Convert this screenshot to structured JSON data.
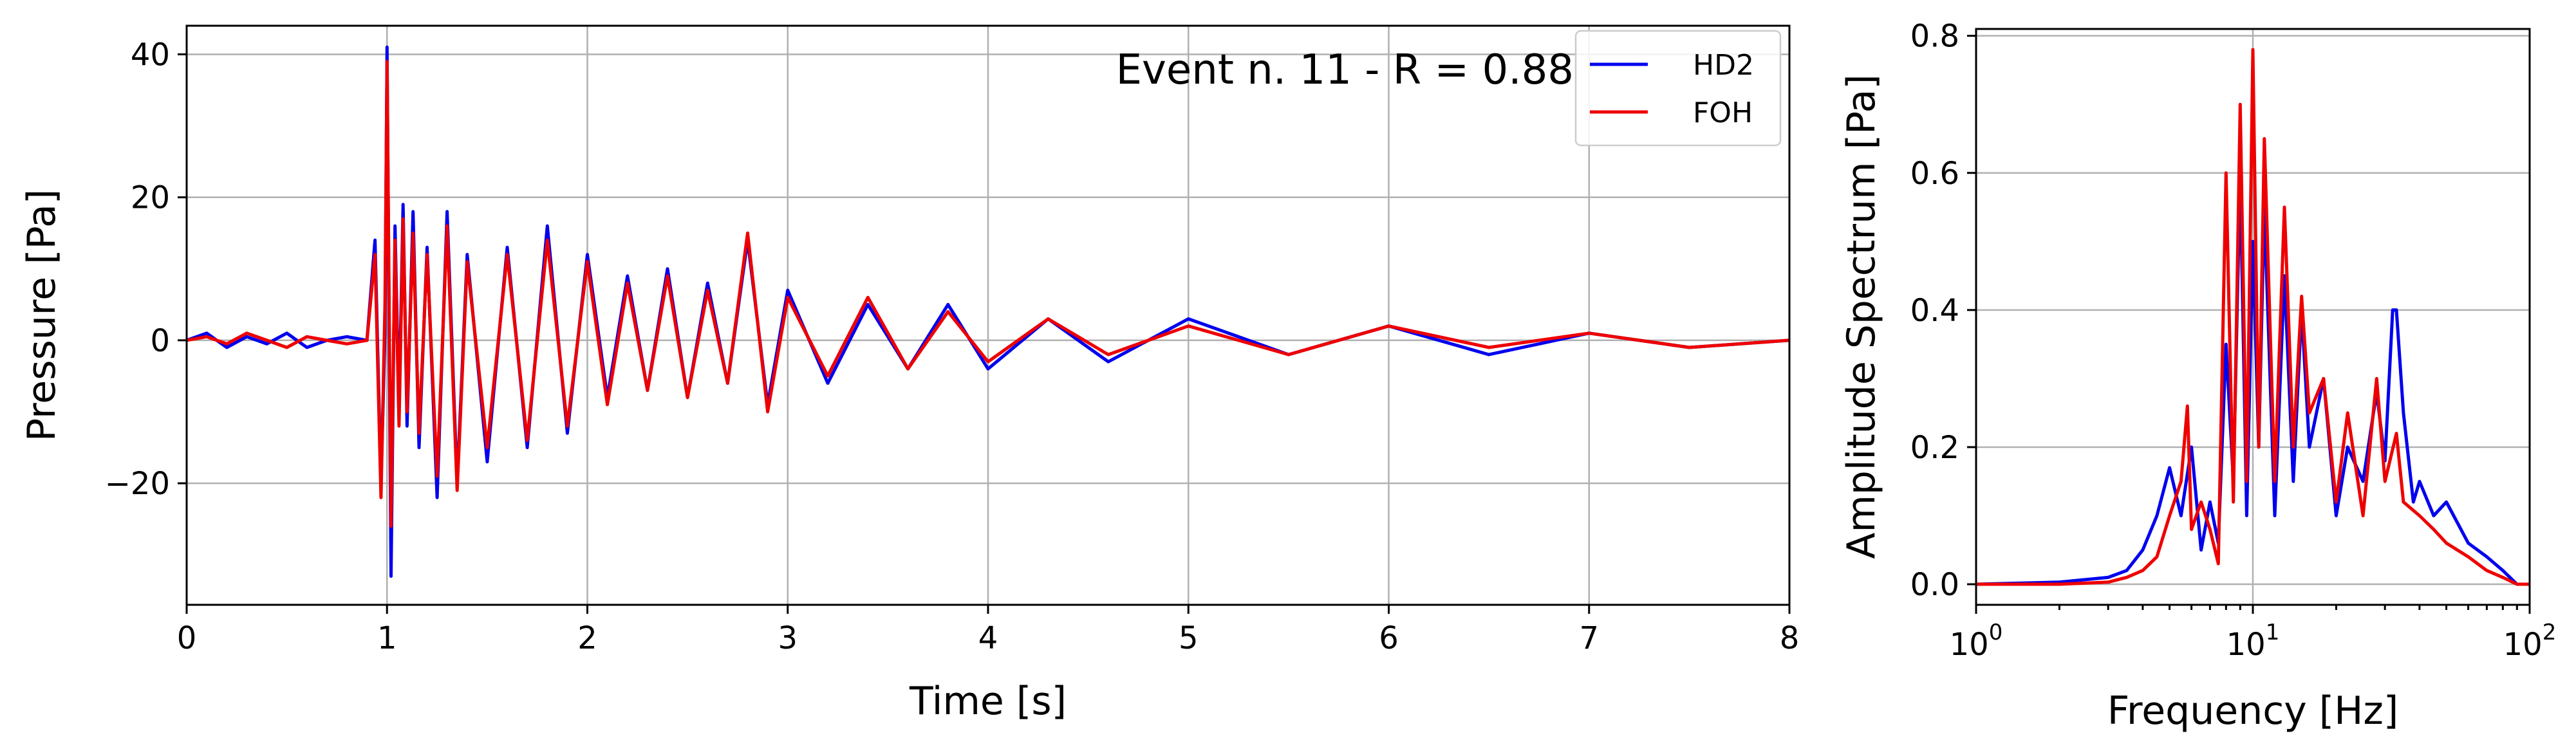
{
  "colors": {
    "HD2": "#0000ee",
    "FOH": "#ee0000"
  },
  "chart_data": [
    {
      "type": "line",
      "xlabel": "Time [s]",
      "ylabel": "Pressure [Pa]",
      "xlim": [
        0,
        8
      ],
      "ylim": [
        -37,
        44
      ],
      "xticks": [
        "0",
        "1",
        "2",
        "3",
        "4",
        "5",
        "6",
        "7",
        "8"
      ],
      "yticks": [
        "40",
        "20",
        "0",
        "−20"
      ],
      "ytick_values": [
        40,
        20,
        0,
        -20
      ],
      "grid": true,
      "annotation": "Event n. 11 - R = 0.88",
      "legend": {
        "placement": "top-right",
        "entries": [
          "HD2",
          "FOH"
        ]
      },
      "series": [
        {
          "name": "HD2",
          "color": "#0000ee",
          "x": [
            0.0,
            0.1,
            0.2,
            0.3,
            0.4,
            0.5,
            0.6,
            0.7,
            0.8,
            0.9,
            0.94,
            0.97,
            0.99,
            1.0,
            1.02,
            1.04,
            1.06,
            1.08,
            1.1,
            1.13,
            1.16,
            1.2,
            1.25,
            1.3,
            1.35,
            1.4,
            1.5,
            1.6,
            1.7,
            1.8,
            1.9,
            2.0,
            2.1,
            2.2,
            2.3,
            2.4,
            2.5,
            2.6,
            2.7,
            2.8,
            2.9,
            3.0,
            3.2,
            3.4,
            3.6,
            3.8,
            4.0,
            4.3,
            4.6,
            5.0,
            5.5,
            6.0,
            6.5,
            7.0,
            7.5,
            8.0
          ],
          "y": [
            0,
            1,
            -1,
            0.5,
            -0.5,
            1,
            -1,
            0,
            0.5,
            0,
            14,
            -20,
            1,
            41,
            -33,
            16,
            -10,
            19,
            -12,
            18,
            -15,
            13,
            -22,
            18,
            -20,
            12,
            -17,
            13,
            -15,
            16,
            -13,
            12,
            -8,
            9,
            -7,
            10,
            -8,
            8,
            -6,
            14,
            -9,
            7,
            -6,
            5,
            -4,
            5,
            -4,
            3,
            -3,
            3,
            -2,
            2,
            -2,
            1,
            -1,
            0
          ]
        },
        {
          "name": "FOH",
          "color": "#ee0000",
          "x": [
            0.0,
            0.1,
            0.2,
            0.3,
            0.4,
            0.5,
            0.6,
            0.7,
            0.8,
            0.9,
            0.94,
            0.97,
            0.99,
            1.0,
            1.02,
            1.04,
            1.06,
            1.08,
            1.1,
            1.13,
            1.16,
            1.2,
            1.25,
            1.3,
            1.35,
            1.4,
            1.5,
            1.6,
            1.7,
            1.8,
            1.9,
            2.0,
            2.1,
            2.2,
            2.3,
            2.4,
            2.5,
            2.6,
            2.7,
            2.8,
            2.9,
            3.0,
            3.2,
            3.4,
            3.6,
            3.8,
            4.0,
            4.3,
            4.6,
            5.0,
            5.5,
            6.0,
            6.5,
            7.0,
            7.5,
            8.0
          ],
          "y": [
            0,
            0.5,
            -0.5,
            1,
            0,
            -1,
            0.5,
            0,
            -0.5,
            0,
            12,
            -22,
            5,
            39,
            -26,
            14,
            -12,
            17,
            -10,
            15,
            -13,
            12,
            -19,
            16,
            -21,
            11,
            -15,
            12,
            -14,
            14,
            -12,
            11,
            -9,
            8,
            -7,
            9,
            -8,
            7,
            -6,
            15,
            -10,
            6,
            -5,
            6,
            -4,
            4,
            -3,
            3,
            -2,
            2,
            -2,
            2,
            -1,
            1,
            -1,
            0
          ]
        }
      ]
    },
    {
      "type": "line",
      "xlabel": "Frequency [Hz]",
      "ylabel": "Amplitude Spectrum [Pa]",
      "xscale": "log",
      "xlim": [
        1,
        100
      ],
      "ylim": [
        -0.03,
        0.81
      ],
      "xtick_values": [
        1,
        10,
        100
      ],
      "xticks_base": [
        "10",
        "10",
        "10"
      ],
      "xticks_exp": [
        "0",
        "1",
        "2"
      ],
      "yticks": [
        "0.0",
        "0.2",
        "0.4",
        "0.6",
        "0.8"
      ],
      "ytick_values": [
        0.0,
        0.2,
        0.4,
        0.6,
        0.8
      ],
      "grid": true,
      "series": [
        {
          "name": "HD2",
          "color": "#0000ee",
          "x": [
            1.0,
            2.0,
            3.0,
            3.5,
            4.0,
            4.5,
            5.0,
            5.5,
            6.0,
            6.5,
            7.0,
            7.5,
            8.0,
            8.5,
            9.0,
            9.5,
            10.0,
            10.5,
            11.0,
            12.0,
            13.0,
            14.0,
            15.0,
            16.0,
            18.0,
            20.0,
            22.0,
            25.0,
            28.0,
            30.0,
            32.0,
            33.0,
            35.0,
            38.0,
            40.0,
            45.0,
            50.0,
            60.0,
            70.0,
            80.0,
            90.0,
            100.0
          ],
          "y": [
            0.0,
            0.003,
            0.01,
            0.02,
            0.05,
            0.1,
            0.17,
            0.1,
            0.2,
            0.05,
            0.12,
            0.06,
            0.35,
            0.15,
            0.6,
            0.1,
            0.5,
            0.2,
            0.55,
            0.1,
            0.45,
            0.15,
            0.4,
            0.2,
            0.3,
            0.1,
            0.2,
            0.15,
            0.28,
            0.18,
            0.4,
            0.4,
            0.25,
            0.12,
            0.15,
            0.1,
            0.12,
            0.06,
            0.04,
            0.02,
            0.0,
            0.0
          ]
        },
        {
          "name": "FOH",
          "color": "#ee0000",
          "x": [
            1.0,
            2.0,
            3.0,
            3.5,
            4.0,
            4.5,
            5.0,
            5.5,
            5.8,
            6.0,
            6.5,
            7.0,
            7.5,
            8.0,
            8.5,
            9.0,
            9.5,
            10.0,
            10.5,
            11.0,
            12.0,
            13.0,
            14.0,
            15.0,
            16.0,
            18.0,
            20.0,
            22.0,
            25.0,
            28.0,
            30.0,
            33.0,
            35.0,
            40.0,
            45.0,
            50.0,
            60.0,
            70.0,
            80.0,
            90.0,
            100.0
          ],
          "y": [
            0.0,
            0.0,
            0.003,
            0.01,
            0.02,
            0.04,
            0.1,
            0.15,
            0.26,
            0.08,
            0.12,
            0.08,
            0.03,
            0.6,
            0.12,
            0.7,
            0.15,
            0.78,
            0.2,
            0.65,
            0.15,
            0.55,
            0.2,
            0.42,
            0.25,
            0.3,
            0.12,
            0.25,
            0.1,
            0.3,
            0.15,
            0.22,
            0.12,
            0.1,
            0.08,
            0.06,
            0.04,
            0.02,
            0.01,
            0.0,
            0.0
          ]
        }
      ]
    }
  ]
}
